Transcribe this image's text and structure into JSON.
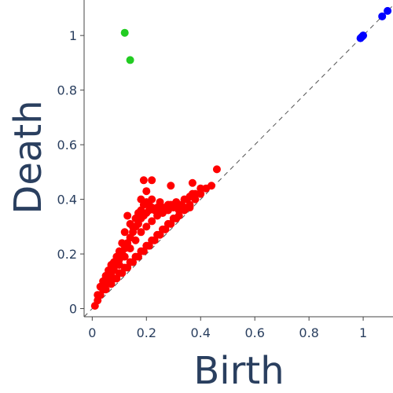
{
  "chart_data": {
    "type": "scatter",
    "title": "",
    "xlabel": "Birth",
    "ylabel": "Death",
    "xlim": [
      -0.03,
      1.11
    ],
    "ylim": [
      -0.03,
      1.13
    ],
    "x_ticks": [
      0,
      0.2,
      0.4,
      0.6,
      0.8,
      1
    ],
    "x_tick_labels": [
      "0",
      "0.2",
      "0.4",
      "0.6",
      "0.8",
      "1"
    ],
    "y_ticks": [
      0,
      0.2,
      0.4,
      0.6,
      0.8,
      1
    ],
    "y_tick_labels": [
      "0",
      "0.2",
      "0.4",
      "0.6",
      "0.8",
      "1"
    ],
    "grid": false,
    "diagonal": {
      "from": [
        -0.03,
        -0.03
      ],
      "to": [
        1.11,
        1.11
      ],
      "style": "dashed",
      "color": "#555555"
    },
    "series": [
      {
        "color": "#ff0000",
        "points": [
          [
            0.01,
            0.01
          ],
          [
            0.02,
            0.03
          ],
          [
            0.03,
            0.05
          ],
          [
            0.04,
            0.07
          ],
          [
            0.05,
            0.09
          ],
          [
            0.06,
            0.11
          ],
          [
            0.07,
            0.12
          ],
          [
            0.08,
            0.14
          ],
          [
            0.09,
            0.16
          ],
          [
            0.1,
            0.18
          ],
          [
            0.11,
            0.2
          ],
          [
            0.12,
            0.22
          ],
          [
            0.13,
            0.24
          ],
          [
            0.14,
            0.26
          ],
          [
            0.15,
            0.28
          ],
          [
            0.16,
            0.3
          ],
          [
            0.17,
            0.31
          ],
          [
            0.18,
            0.33
          ],
          [
            0.19,
            0.34
          ],
          [
            0.2,
            0.35
          ],
          [
            0.21,
            0.36
          ],
          [
            0.22,
            0.37
          ],
          [
            0.23,
            0.36
          ],
          [
            0.24,
            0.37
          ],
          [
            0.25,
            0.37
          ],
          [
            0.26,
            0.37
          ],
          [
            0.27,
            0.37
          ],
          [
            0.28,
            0.38
          ],
          [
            0.29,
            0.38
          ],
          [
            0.3,
            0.38
          ],
          [
            0.31,
            0.39
          ],
          [
            0.32,
            0.38
          ],
          [
            0.33,
            0.38
          ],
          [
            0.34,
            0.4
          ],
          [
            0.35,
            0.4
          ],
          [
            0.36,
            0.41
          ],
          [
            0.37,
            0.42
          ],
          [
            0.38,
            0.42
          ],
          [
            0.4,
            0.44
          ],
          [
            0.42,
            0.44
          ],
          [
            0.44,
            0.45
          ],
          [
            0.46,
            0.51
          ],
          [
            0.19,
            0.47
          ],
          [
            0.22,
            0.47
          ],
          [
            0.2,
            0.43
          ],
          [
            0.29,
            0.45
          ],
          [
            0.37,
            0.46
          ],
          [
            0.13,
            0.34
          ],
          [
            0.15,
            0.3
          ],
          [
            0.12,
            0.28
          ],
          [
            0.11,
            0.24
          ],
          [
            0.1,
            0.21
          ],
          [
            0.09,
            0.19
          ],
          [
            0.08,
            0.17
          ],
          [
            0.07,
            0.16
          ],
          [
            0.06,
            0.14
          ],
          [
            0.05,
            0.12
          ],
          [
            0.04,
            0.1
          ],
          [
            0.03,
            0.08
          ],
          [
            0.02,
            0.05
          ],
          [
            0.1,
            0.16
          ],
          [
            0.12,
            0.19
          ],
          [
            0.14,
            0.22
          ],
          [
            0.16,
            0.25
          ],
          [
            0.18,
            0.28
          ],
          [
            0.2,
            0.3
          ],
          [
            0.22,
            0.32
          ],
          [
            0.24,
            0.34
          ],
          [
            0.26,
            0.35
          ],
          [
            0.28,
            0.36
          ],
          [
            0.3,
            0.37
          ],
          [
            0.32,
            0.36
          ],
          [
            0.34,
            0.37
          ],
          [
            0.36,
            0.38
          ],
          [
            0.38,
            0.4
          ],
          [
            0.4,
            0.42
          ],
          [
            0.08,
            0.11
          ],
          [
            0.1,
            0.13
          ],
          [
            0.12,
            0.15
          ],
          [
            0.14,
            0.17
          ],
          [
            0.16,
            0.19
          ],
          [
            0.18,
            0.21
          ],
          [
            0.2,
            0.23
          ],
          [
            0.22,
            0.25
          ],
          [
            0.24,
            0.27
          ],
          [
            0.26,
            0.29
          ],
          [
            0.28,
            0.31
          ],
          [
            0.3,
            0.33
          ],
          [
            0.32,
            0.34
          ],
          [
            0.34,
            0.36
          ],
          [
            0.36,
            0.37
          ],
          [
            0.05,
            0.07
          ],
          [
            0.07,
            0.09
          ],
          [
            0.09,
            0.11
          ],
          [
            0.11,
            0.13
          ],
          [
            0.13,
            0.15
          ],
          [
            0.15,
            0.17
          ],
          [
            0.17,
            0.19
          ],
          [
            0.19,
            0.21
          ],
          [
            0.21,
            0.23
          ],
          [
            0.23,
            0.25
          ],
          [
            0.25,
            0.27
          ],
          [
            0.27,
            0.29
          ],
          [
            0.29,
            0.31
          ],
          [
            0.31,
            0.33
          ],
          [
            0.18,
            0.36
          ],
          [
            0.21,
            0.38
          ],
          [
            0.17,
            0.35
          ],
          [
            0.16,
            0.33
          ],
          [
            0.14,
            0.31
          ],
          [
            0.18,
            0.4
          ],
          [
            0.2,
            0.39
          ],
          [
            0.24,
            0.36
          ],
          [
            0.26,
            0.36
          ],
          [
            0.28,
            0.37
          ],
          [
            0.22,
            0.4
          ],
          [
            0.19,
            0.38
          ],
          [
            0.25,
            0.39
          ]
        ]
      },
      {
        "color": "#22cc22",
        "points": [
          [
            0.12,
            1.01
          ],
          [
            0.14,
            0.91
          ]
        ]
      },
      {
        "color": "#0000ff",
        "points": [
          [
            0.99,
            0.99
          ],
          [
            1.0,
            1.0
          ],
          [
            0.995,
            0.995
          ],
          [
            1.07,
            1.07
          ],
          [
            1.09,
            1.09
          ]
        ]
      }
    ]
  }
}
